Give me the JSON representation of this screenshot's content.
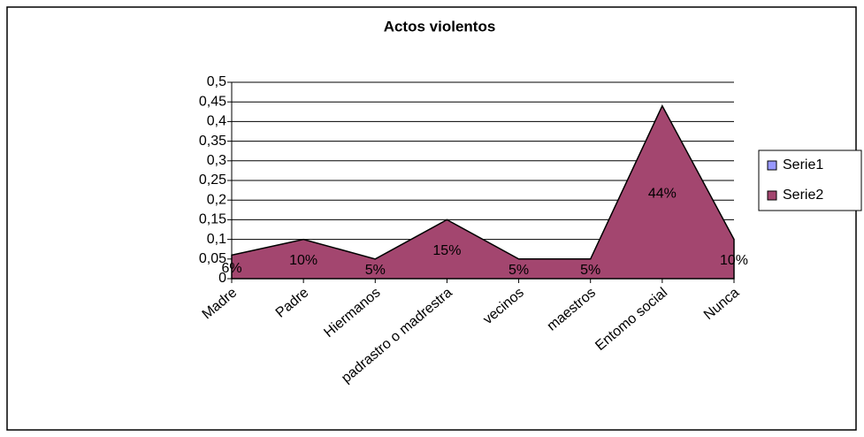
{
  "chart_data": {
    "type": "area",
    "title": "Actos violentos",
    "categories": [
      "Madre",
      "Padre",
      "Hiermanos",
      "padrastro o madrestra",
      "vecinos",
      "maestros",
      "Entomo social",
      "Nunca"
    ],
    "series": [
      {
        "name": "Serie1",
        "color": "#9999ff",
        "values": [
          null,
          null,
          null,
          null,
          null,
          null,
          null,
          null
        ]
      },
      {
        "name": "Serie2",
        "color": "#a3466f",
        "values": [
          0.06,
          0.1,
          0.05,
          0.15,
          0.05,
          0.05,
          0.44,
          0.1
        ],
        "value_labels": [
          "6%",
          "10%",
          "5%",
          "15%",
          "5%",
          "5%",
          "44%",
          "10%"
        ]
      }
    ],
    "ylim": [
      0,
      0.5
    ],
    "yticks": [
      0,
      {
        "value": 0.05,
        "label": "0,05"
      },
      {
        "value": 0.1,
        "label": "0,1"
      },
      {
        "value": 0.15,
        "label": "0,15"
      },
      {
        "value": 0.2,
        "label": "0,2"
      },
      {
        "value": 0.25,
        "label": "0,25"
      },
      {
        "value": 0.3,
        "label": "0,3"
      },
      {
        "value": 0.35,
        "label": "0,35"
      },
      {
        "value": 0.4,
        "label": "0,4"
      },
      {
        "value": 0.45,
        "label": "0,45"
      },
      {
        "value": 0.5,
        "label": "0,5"
      }
    ],
    "grid": true,
    "legend": "right"
  }
}
